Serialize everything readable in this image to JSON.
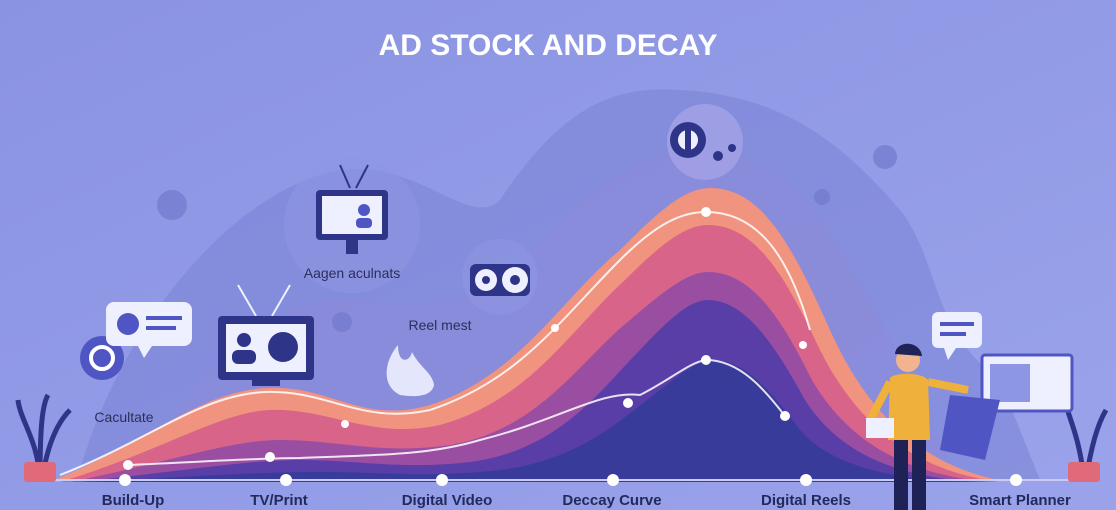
{
  "title": "AD STOCK AND DECAY",
  "annotations": [
    "Aagen aculnats",
    "Reel mest",
    "Cacultate"
  ],
  "timeline": {
    "labels": [
      "Build-Up",
      "TV/Print",
      "Digital Video",
      "Deccay Curve",
      "Digital Reels",
      "Smart Planner"
    ]
  }
}
